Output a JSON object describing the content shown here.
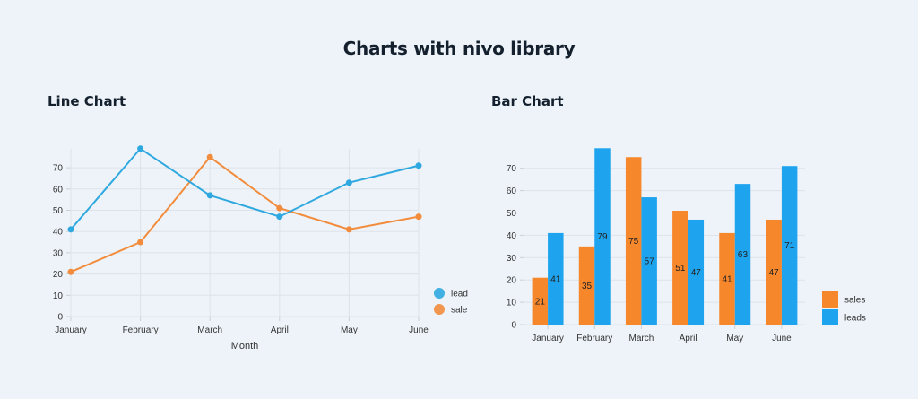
{
  "page": {
    "title": "Charts with nivo library"
  },
  "line_section": {
    "title": "Line Chart"
  },
  "bar_section": {
    "title": "Bar Chart"
  },
  "colors": {
    "lead": "#2fa8e0",
    "sale": "#f28c3c",
    "grid": "#dde3e9",
    "axis": "#c9d0d6"
  },
  "chart_data": [
    {
      "type": "line",
      "title": "Line Chart",
      "categories": [
        "January",
        "February",
        "March",
        "April",
        "May",
        "June"
      ],
      "series": [
        {
          "name": "lead",
          "color": "#2fa8e0",
          "values": [
            41,
            79,
            57,
            47,
            63,
            71
          ]
        },
        {
          "name": "sale",
          "color": "#f28c3c",
          "values": [
            21,
            35,
            75,
            51,
            41,
            47
          ]
        }
      ],
      "xlabel": "Month",
      "ylabel": "",
      "yticks": [
        0,
        10,
        20,
        30,
        40,
        50,
        60,
        70
      ],
      "ylim": [
        0,
        79
      ],
      "grid": true,
      "legend": {
        "position": "right-bottom",
        "entries": [
          "lead",
          "sale"
        ]
      }
    },
    {
      "type": "bar",
      "title": "Bar Chart",
      "categories": [
        "January",
        "February",
        "March",
        "April",
        "May",
        "June"
      ],
      "series": [
        {
          "name": "sales",
          "color": "#f7872b",
          "values": [
            21,
            35,
            75,
            51,
            41,
            47
          ]
        },
        {
          "name": "leads",
          "color": "#1ea3ee",
          "values": [
            41,
            79,
            57,
            47,
            63,
            71
          ]
        }
      ],
      "xlabel": "",
      "ylabel": "",
      "yticks": [
        0,
        10,
        20,
        30,
        40,
        50,
        60,
        70
      ],
      "ylim": [
        0,
        79
      ],
      "grid": true,
      "grouped": true,
      "value_labels": true,
      "legend": {
        "position": "right-bottom",
        "entries": [
          "sales",
          "leads"
        ]
      }
    }
  ]
}
